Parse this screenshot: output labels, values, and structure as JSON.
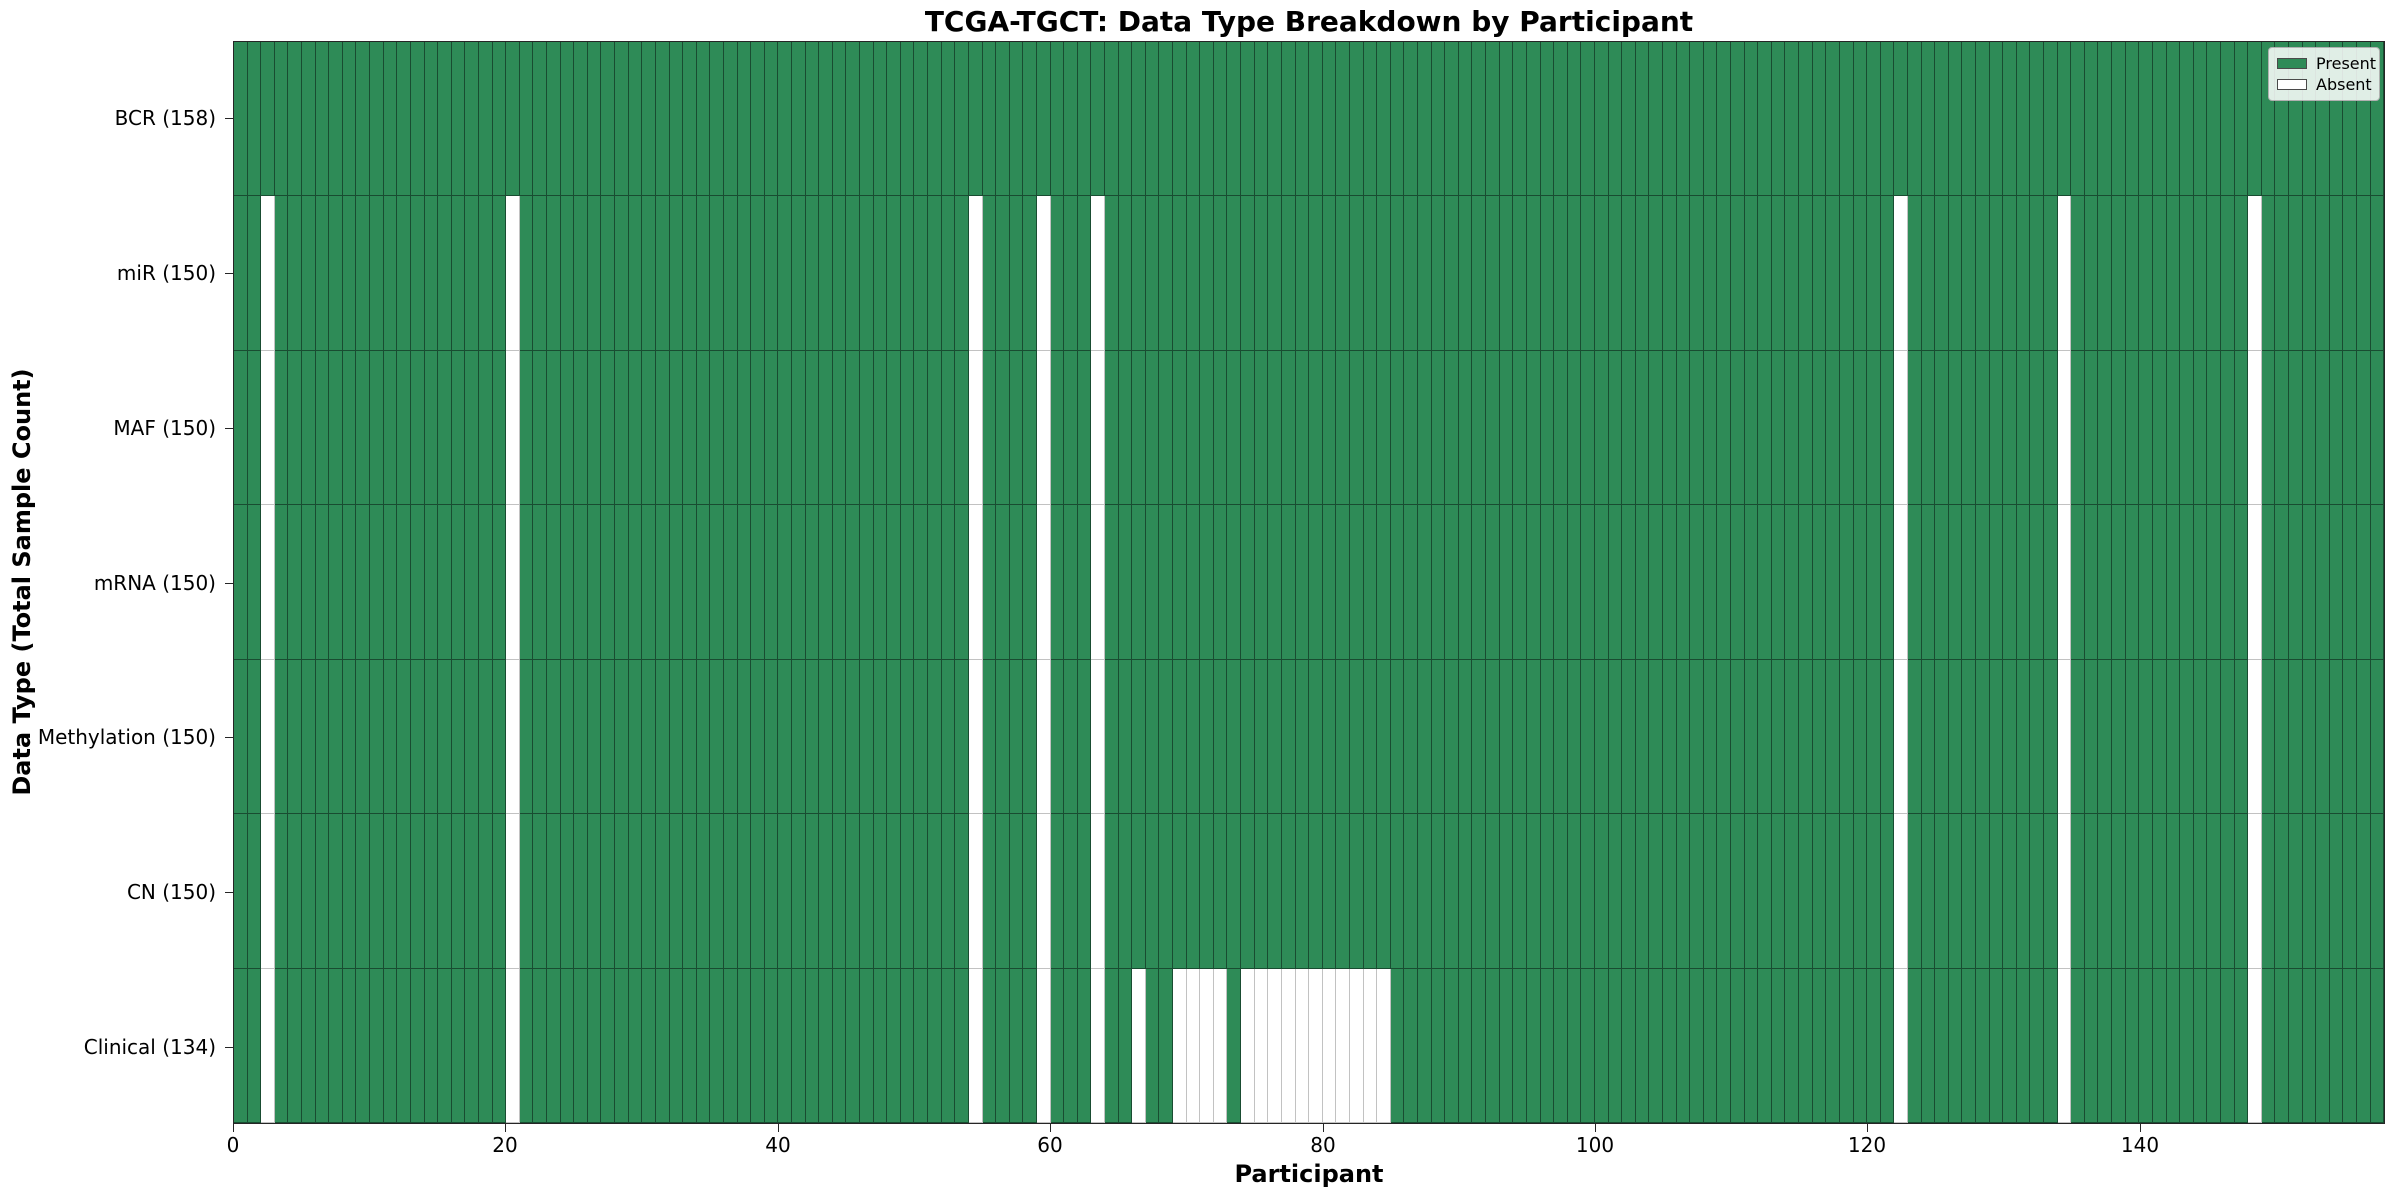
{
  "title": "TCGA-TGCT: Data Type Breakdown by Participant",
  "legend": {
    "present_label": "Present",
    "absent_label": "Absent"
  },
  "colors": {
    "present_fill": "#2e8b57",
    "present_edge": "rgba(10,25,18,0.55)",
    "absent_fill": "#ffffff",
    "absent_edge": "#c2c2c2"
  },
  "chart_data": {
    "type": "heatmap",
    "title": "TCGA-TGCT: Data Type Breakdown by Participant",
    "xlabel": "Participant",
    "ylabel": "Data Type (Total Sample Count)",
    "legend_entries": [
      "Present",
      "Absent"
    ],
    "legend_position": "upper right",
    "grid": false,
    "n_participants": 158,
    "x_range": [
      0,
      158
    ],
    "x_ticks": [
      0,
      20,
      40,
      60,
      80,
      100,
      120,
      140
    ],
    "cell_values": "present=1, absent=0; absent lists participant indices (0-based) with missing data",
    "rows": [
      {
        "name": "bcr",
        "label": "BCR (158)",
        "data_type": "BCR",
        "total": 158,
        "absent": []
      },
      {
        "name": "mir",
        "label": "miR (150)",
        "data_type": "miR",
        "total": 150,
        "absent": [
          2,
          20,
          54,
          59,
          63,
          122,
          134,
          148
        ]
      },
      {
        "name": "maf",
        "label": "MAF (150)",
        "data_type": "MAF",
        "total": 150,
        "absent": [
          2,
          20,
          54,
          59,
          63,
          122,
          134,
          148
        ]
      },
      {
        "name": "mrna",
        "label": "mRNA (150)",
        "data_type": "mRNA",
        "total": 150,
        "absent": [
          2,
          20,
          54,
          59,
          63,
          122,
          134,
          148
        ]
      },
      {
        "name": "methylation",
        "label": "Methylation (150)",
        "data_type": "Methylation",
        "total": 150,
        "absent": [
          2,
          20,
          54,
          59,
          63,
          122,
          134,
          148
        ]
      },
      {
        "name": "cn",
        "label": "CN (150)",
        "data_type": "CN",
        "total": 150,
        "absent": [
          2,
          20,
          54,
          59,
          63,
          122,
          134,
          148
        ]
      },
      {
        "name": "clinical",
        "label": "Clinical (134)",
        "data_type": "Clinical",
        "total": 134,
        "absent": [
          2,
          20,
          54,
          59,
          63,
          66,
          69,
          70,
          71,
          72,
          74,
          75,
          76,
          77,
          78,
          79,
          80,
          81,
          82,
          83,
          84,
          122,
          134,
          148
        ]
      }
    ]
  }
}
